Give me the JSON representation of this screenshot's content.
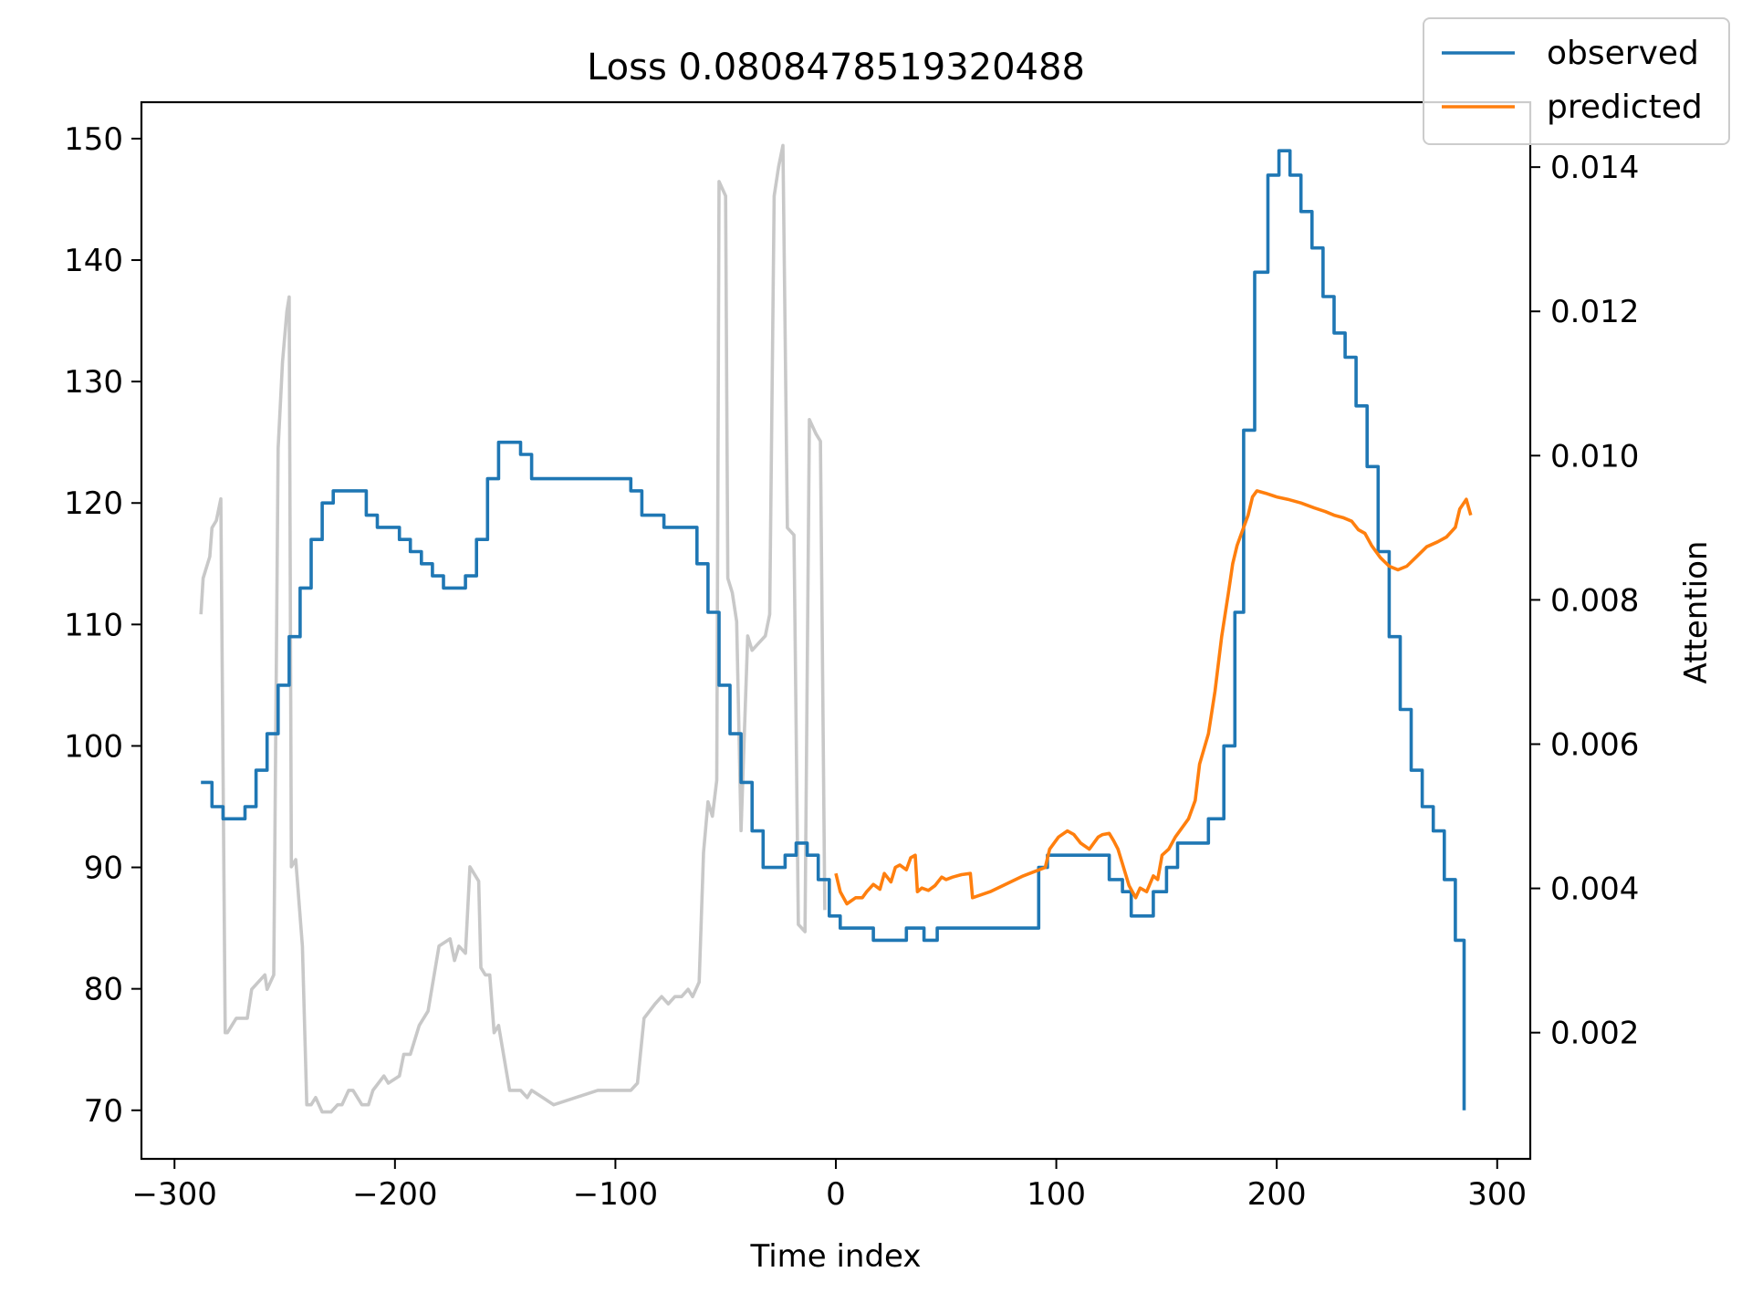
{
  "chart_data": {
    "type": "line",
    "title": "Loss 0.0808478519320488",
    "xlabel": "Time index",
    "ylabel": "",
    "y2label": "Attention",
    "xlim": [
      -315,
      315
    ],
    "ylim": [
      66,
      153
    ],
    "y2lim": [
      0.00025,
      0.0149
    ],
    "x_ticks": [
      -300,
      -200,
      -100,
      0,
      100,
      200,
      300
    ],
    "x_tick_labels": [
      "−300",
      "−200",
      "−100",
      "0",
      "100",
      "200",
      "300"
    ],
    "y_ticks": [
      70,
      80,
      90,
      100,
      110,
      120,
      130,
      140,
      150
    ],
    "y_tick_labels": [
      "70",
      "80",
      "90",
      "100",
      "110",
      "120",
      "130",
      "140",
      "150"
    ],
    "y2_ticks": [
      0.002,
      0.004,
      0.006,
      0.008,
      0.01,
      0.012,
      0.014
    ],
    "y2_tick_labels": [
      "0.002",
      "0.004",
      "0.006",
      "0.008",
      "0.010",
      "0.012",
      "0.014"
    ],
    "legend_position": "top-right",
    "grid": false,
    "series": [
      {
        "name": "observed",
        "color": "#1f77b4",
        "axis": "left",
        "step": true,
        "points": [
          [
            -288,
            97
          ],
          [
            -283,
            95
          ],
          [
            -278,
            94
          ],
          [
            -268,
            95
          ],
          [
            -263,
            98
          ],
          [
            -258,
            101
          ],
          [
            -253,
            105
          ],
          [
            -248,
            109
          ],
          [
            -243,
            113
          ],
          [
            -238,
            117
          ],
          [
            -233,
            120
          ],
          [
            -228,
            121
          ],
          [
            -213,
            119
          ],
          [
            -208,
            118
          ],
          [
            -198,
            117
          ],
          [
            -193,
            116
          ],
          [
            -188,
            115
          ],
          [
            -183,
            114
          ],
          [
            -178,
            113
          ],
          [
            -168,
            114
          ],
          [
            -163,
            117
          ],
          [
            -158,
            122
          ],
          [
            -153,
            125
          ],
          [
            -143,
            124
          ],
          [
            -138,
            122
          ],
          [
            -93,
            121
          ],
          [
            -88,
            119
          ],
          [
            -78,
            118
          ],
          [
            -63,
            115
          ],
          [
            -58,
            111
          ],
          [
            -53,
            105
          ],
          [
            -48,
            101
          ],
          [
            -43,
            97
          ],
          [
            -38,
            93
          ],
          [
            -33,
            90
          ],
          [
            -23,
            91
          ],
          [
            -18,
            92
          ],
          [
            -13,
            91
          ],
          [
            -8,
            89
          ],
          [
            -3,
            86
          ],
          [
            2,
            85
          ],
          [
            17,
            84
          ],
          [
            32,
            85
          ],
          [
            40,
            84
          ],
          [
            46,
            85
          ],
          [
            92,
            90
          ],
          [
            96,
            91
          ],
          [
            124,
            89
          ],
          [
            130,
            88
          ],
          [
            134,
            86
          ],
          [
            144,
            88
          ],
          [
            150,
            90
          ],
          [
            155,
            92
          ],
          [
            169,
            94
          ],
          [
            176,
            100
          ],
          [
            181,
            111
          ],
          [
            185,
            126
          ],
          [
            190,
            139
          ],
          [
            196,
            147
          ],
          [
            201,
            149
          ],
          [
            206,
            147
          ],
          [
            211,
            144
          ],
          [
            216,
            141
          ],
          [
            221,
            137
          ],
          [
            226,
            134
          ],
          [
            231,
            132
          ],
          [
            236,
            128
          ],
          [
            241,
            123
          ],
          [
            246,
            116
          ],
          [
            251,
            109
          ],
          [
            256,
            103
          ],
          [
            261,
            98
          ],
          [
            266,
            95
          ],
          [
            271,
            93
          ],
          [
            276,
            89
          ],
          [
            281,
            84
          ],
          [
            285,
            70
          ]
        ]
      },
      {
        "name": "predicted",
        "color": "#ff7f0e",
        "axis": "left",
        "step": false,
        "points": [
          [
            0,
            89.5
          ],
          [
            2,
            88.0
          ],
          [
            5,
            87.0
          ],
          [
            9,
            87.5
          ],
          [
            12,
            87.5
          ],
          [
            14,
            88.0
          ],
          [
            17,
            88.6
          ],
          [
            20,
            88.2
          ],
          [
            22,
            89.5
          ],
          [
            25,
            88.8
          ],
          [
            27,
            90.0
          ],
          [
            29,
            90.2
          ],
          [
            32,
            89.8
          ],
          [
            34,
            90.8
          ],
          [
            36,
            91.0
          ],
          [
            37,
            88.0
          ],
          [
            39,
            88.3
          ],
          [
            42,
            88.1
          ],
          [
            45,
            88.5
          ],
          [
            48,
            89.2
          ],
          [
            50,
            89.0
          ],
          [
            53,
            89.2
          ],
          [
            57,
            89.4
          ],
          [
            61,
            89.5
          ],
          [
            62,
            87.5
          ],
          [
            70,
            88.0
          ],
          [
            85,
            89.3
          ],
          [
            95,
            90.0
          ],
          [
            97,
            91.5
          ],
          [
            101,
            92.5
          ],
          [
            105,
            93.0
          ],
          [
            108,
            92.7
          ],
          [
            111,
            92.0
          ],
          [
            115,
            91.5
          ],
          [
            119,
            92.5
          ],
          [
            121,
            92.7
          ],
          [
            124,
            92.8
          ],
          [
            126,
            92.2
          ],
          [
            128,
            91.5
          ],
          [
            130,
            90.3
          ],
          [
            133,
            88.5
          ],
          [
            136,
            87.5
          ],
          [
            138,
            88.3
          ],
          [
            141,
            88.0
          ],
          [
            144,
            89.3
          ],
          [
            146,
            89.0
          ],
          [
            148,
            91.0
          ],
          [
            151,
            91.5
          ],
          [
            154,
            92.5
          ],
          [
            156,
            93.0
          ],
          [
            160,
            94.0
          ],
          [
            163,
            95.5
          ],
          [
            165,
            98.5
          ],
          [
            169,
            101.0
          ],
          [
            172,
            104.5
          ],
          [
            175,
            109.0
          ],
          [
            178,
            112.5
          ],
          [
            180,
            115.0
          ],
          [
            182,
            116.5
          ],
          [
            184,
            117.5
          ],
          [
            187,
            119.0
          ],
          [
            189,
            120.5
          ],
          [
            191,
            121.0
          ],
          [
            195,
            120.8
          ],
          [
            200,
            120.5
          ],
          [
            205,
            120.3
          ],
          [
            211,
            120.0
          ],
          [
            217,
            119.6
          ],
          [
            222,
            119.3
          ],
          [
            226,
            119.0
          ],
          [
            230,
            118.8
          ],
          [
            234,
            118.5
          ],
          [
            237,
            117.8
          ],
          [
            240,
            117.5
          ],
          [
            243,
            116.5
          ],
          [
            247,
            115.5
          ],
          [
            251,
            114.8
          ],
          [
            255,
            114.5
          ],
          [
            259,
            114.8
          ],
          [
            263,
            115.5
          ],
          [
            268,
            116.4
          ],
          [
            273,
            116.8
          ],
          [
            277,
            117.2
          ],
          [
            281,
            118.0
          ],
          [
            283,
            119.5
          ],
          [
            286,
            120.3
          ],
          [
            288,
            119.0
          ]
        ]
      },
      {
        "name": "",
        "color": "#c8c8c8",
        "axis": "right",
        "step": false,
        "points": [
          [
            -288,
            0.0078
          ],
          [
            -287,
            0.0083
          ],
          [
            -284,
            0.0086
          ],
          [
            -283,
            0.009
          ],
          [
            -281,
            0.0091
          ],
          [
            -279,
            0.0094
          ],
          [
            -277,
            0.002
          ],
          [
            -276,
            0.002
          ],
          [
            -272,
            0.0022
          ],
          [
            -267,
            0.0022
          ],
          [
            -265,
            0.0026
          ],
          [
            -262,
            0.0027
          ],
          [
            -259,
            0.0028
          ],
          [
            -258,
            0.0026
          ],
          [
            -255,
            0.0028
          ],
          [
            -253,
            0.0101
          ],
          [
            -251,
            0.0113
          ],
          [
            -249,
            0.012
          ],
          [
            -248,
            0.0122
          ],
          [
            -247,
            0.0043
          ],
          [
            -245,
            0.0044
          ],
          [
            -242,
            0.0032
          ],
          [
            -240,
            0.001
          ],
          [
            -238,
            0.001
          ],
          [
            -236,
            0.0011
          ],
          [
            -233,
            0.0009
          ],
          [
            -231,
            0.0009
          ],
          [
            -229,
            0.0009
          ],
          [
            -226,
            0.001
          ],
          [
            -224,
            0.001
          ],
          [
            -221,
            0.0012
          ],
          [
            -219,
            0.0012
          ],
          [
            -215,
            0.001
          ],
          [
            -212,
            0.001
          ],
          [
            -210,
            0.0012
          ],
          [
            -205,
            0.0014
          ],
          [
            -203,
            0.0013
          ],
          [
            -198,
            0.0014
          ],
          [
            -196,
            0.0017
          ],
          [
            -193,
            0.0017
          ],
          [
            -189,
            0.0021
          ],
          [
            -185,
            0.0023
          ],
          [
            -180,
            0.0032
          ],
          [
            -175,
            0.0033
          ],
          [
            -173,
            0.003
          ],
          [
            -171,
            0.0032
          ],
          [
            -168,
            0.0031
          ],
          [
            -166,
            0.0043
          ],
          [
            -164,
            0.0042
          ],
          [
            -162,
            0.0041
          ],
          [
            -161,
            0.0029
          ],
          [
            -159,
            0.0028
          ],
          [
            -157,
            0.0028
          ],
          [
            -155,
            0.002
          ],
          [
            -153,
            0.0021
          ],
          [
            -148,
            0.0012
          ],
          [
            -144,
            0.0012
          ],
          [
            -143,
            0.0012
          ],
          [
            -140,
            0.0011
          ],
          [
            -138,
            0.0012
          ],
          [
            -133,
            0.0011
          ],
          [
            -128,
            0.001
          ],
          [
            -118,
            0.0011
          ],
          [
            -108,
            0.0012
          ],
          [
            -98,
            0.0012
          ],
          [
            -93,
            0.0012
          ],
          [
            -90,
            0.0013
          ],
          [
            -87,
            0.0022
          ],
          [
            -82,
            0.0024
          ],
          [
            -79,
            0.0025
          ],
          [
            -76,
            0.0024
          ],
          [
            -73,
            0.0025
          ],
          [
            -70,
            0.0025
          ],
          [
            -67,
            0.0026
          ],
          [
            -65,
            0.0025
          ],
          [
            -62,
            0.0027
          ],
          [
            -60,
            0.0045
          ],
          [
            -58,
            0.0052
          ],
          [
            -56,
            0.005
          ],
          [
            -54,
            0.0055
          ],
          [
            -53,
            0.0138
          ],
          [
            -50,
            0.0136
          ],
          [
            -49,
            0.0083
          ],
          [
            -47,
            0.0081
          ],
          [
            -45,
            0.0077
          ],
          [
            -43,
            0.0048
          ],
          [
            -40,
            0.0075
          ],
          [
            -38,
            0.0073
          ],
          [
            -35,
            0.0074
          ],
          [
            -32,
            0.0075
          ],
          [
            -30,
            0.0078
          ],
          [
            -28,
            0.0136
          ],
          [
            -26,
            0.014
          ],
          [
            -24,
            0.0143
          ],
          [
            -22,
            0.009
          ],
          [
            -19,
            0.0089
          ],
          [
            -17,
            0.0035
          ],
          [
            -14,
            0.0034
          ],
          [
            -12,
            0.0105
          ],
          [
            -9,
            0.0103
          ],
          [
            -7,
            0.0102
          ],
          [
            -5,
            0.0037
          ]
        ]
      }
    ]
  }
}
